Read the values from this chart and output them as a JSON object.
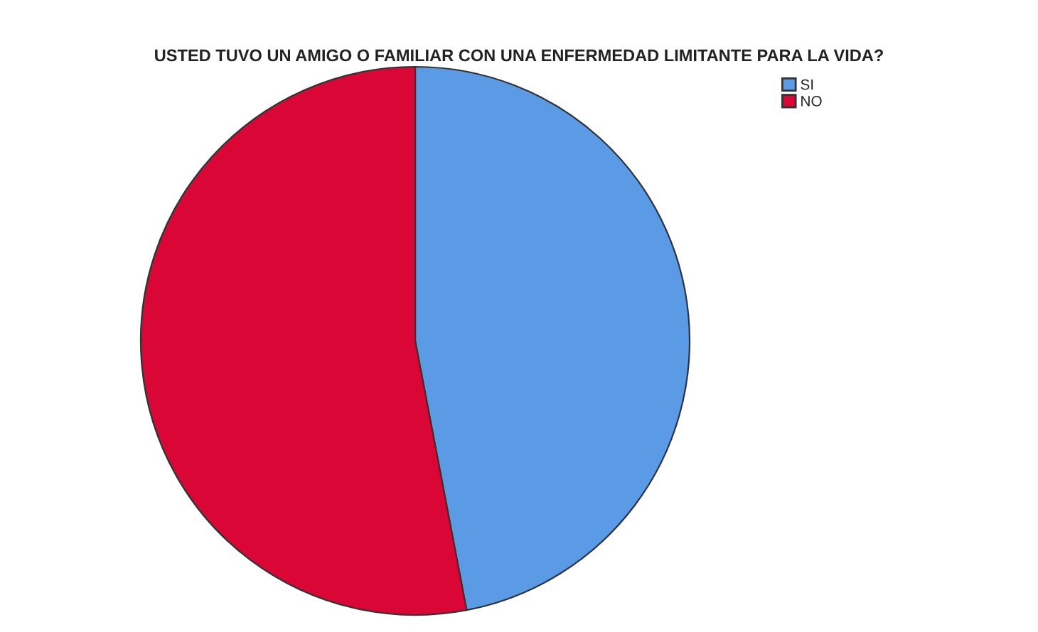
{
  "chart_data": {
    "type": "pie",
    "title": "USTED TUVO UN AMIGO O FAMILIAR CON UNA ENFERMEDAD LIMITANTE PARA LA VIDA?",
    "categories": [
      "SI",
      "NO"
    ],
    "values": [
      47,
      53
    ],
    "colors": [
      "#5b9be6",
      "#d90636"
    ],
    "legend": "top right"
  }
}
